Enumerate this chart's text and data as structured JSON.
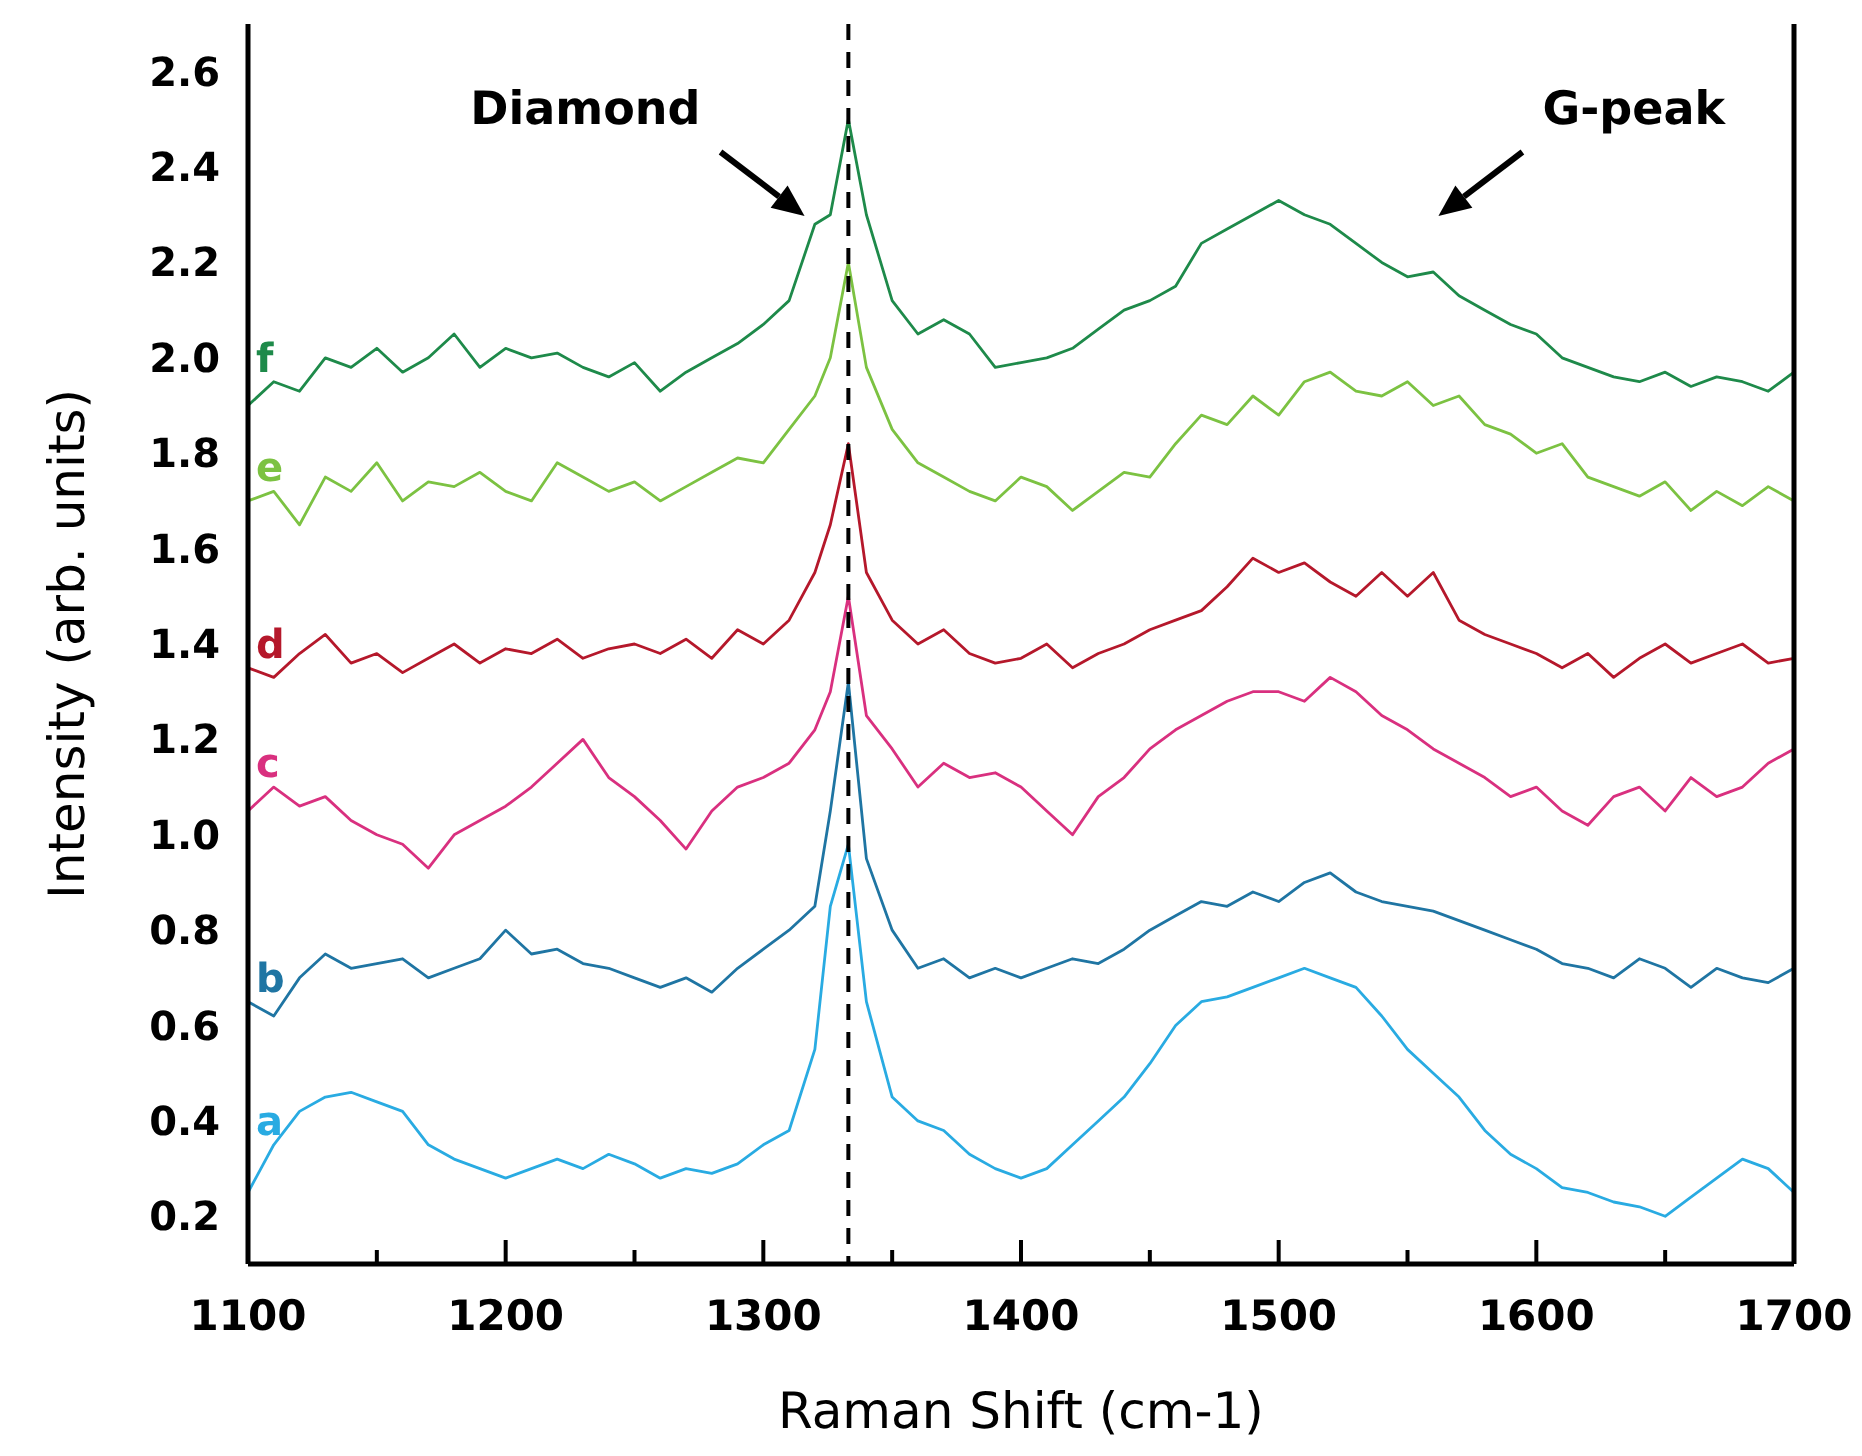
{
  "chart_data": {
    "type": "line",
    "xlabel": "Raman Shift (cm-1)",
    "ylabel": "Intensity (arb. units)",
    "x": [
      1100,
      1110,
      1120,
      1130,
      1140,
      1150,
      1160,
      1170,
      1180,
      1190,
      1200,
      1210,
      1220,
      1230,
      1240,
      1250,
      1260,
      1270,
      1280,
      1290,
      1300,
      1310,
      1320,
      1326,
      1333,
      1340,
      1350,
      1360,
      1370,
      1380,
      1390,
      1400,
      1410,
      1420,
      1430,
      1440,
      1450,
      1460,
      1470,
      1480,
      1490,
      1500,
      1510,
      1520,
      1530,
      1540,
      1550,
      1560,
      1570,
      1580,
      1590,
      1600,
      1610,
      1620,
      1630,
      1640,
      1650,
      1660,
      1670,
      1680,
      1690,
      1700
    ],
    "series": [
      {
        "name": "a",
        "color": "#29abe2",
        "values": [
          0.25,
          0.35,
          0.42,
          0.45,
          0.46,
          0.44,
          0.42,
          0.35,
          0.32,
          0.3,
          0.28,
          0.3,
          0.32,
          0.3,
          0.33,
          0.31,
          0.28,
          0.3,
          0.29,
          0.31,
          0.35,
          0.38,
          0.55,
          0.85,
          0.98,
          0.65,
          0.45,
          0.4,
          0.38,
          0.33,
          0.3,
          0.28,
          0.3,
          0.35,
          0.4,
          0.45,
          0.52,
          0.6,
          0.65,
          0.66,
          0.68,
          0.7,
          0.72,
          0.7,
          0.68,
          0.62,
          0.55,
          0.5,
          0.45,
          0.38,
          0.33,
          0.3,
          0.26,
          0.25,
          0.23,
          0.22,
          0.2,
          0.24,
          0.28,
          0.32,
          0.3,
          0.25
        ]
      },
      {
        "name": "b",
        "color": "#1f75a3",
        "values": [
          0.65,
          0.62,
          0.7,
          0.75,
          0.72,
          0.73,
          0.74,
          0.7,
          0.72,
          0.74,
          0.8,
          0.75,
          0.76,
          0.73,
          0.72,
          0.7,
          0.68,
          0.7,
          0.67,
          0.72,
          0.76,
          0.8,
          0.85,
          1.05,
          1.32,
          0.95,
          0.8,
          0.72,
          0.74,
          0.7,
          0.72,
          0.7,
          0.72,
          0.74,
          0.73,
          0.76,
          0.8,
          0.83,
          0.86,
          0.85,
          0.88,
          0.86,
          0.9,
          0.92,
          0.88,
          0.86,
          0.85,
          0.84,
          0.82,
          0.8,
          0.78,
          0.76,
          0.73,
          0.72,
          0.7,
          0.74,
          0.72,
          0.68,
          0.72,
          0.7,
          0.69,
          0.72
        ]
      },
      {
        "name": "c",
        "color": "#d9307f",
        "values": [
          1.05,
          1.1,
          1.06,
          1.08,
          1.03,
          1.0,
          0.98,
          0.93,
          1.0,
          1.03,
          1.06,
          1.1,
          1.15,
          1.2,
          1.12,
          1.08,
          1.03,
          0.97,
          1.05,
          1.1,
          1.12,
          1.15,
          1.22,
          1.3,
          1.5,
          1.25,
          1.18,
          1.1,
          1.15,
          1.12,
          1.13,
          1.1,
          1.05,
          1.0,
          1.08,
          1.12,
          1.18,
          1.22,
          1.25,
          1.28,
          1.3,
          1.3,
          1.28,
          1.33,
          1.3,
          1.25,
          1.22,
          1.18,
          1.15,
          1.12,
          1.08,
          1.1,
          1.05,
          1.02,
          1.08,
          1.1,
          1.05,
          1.12,
          1.08,
          1.1,
          1.15,
          1.18
        ]
      },
      {
        "name": "d",
        "color": "#b5182b",
        "values": [
          1.35,
          1.33,
          1.38,
          1.42,
          1.36,
          1.38,
          1.34,
          1.37,
          1.4,
          1.36,
          1.39,
          1.38,
          1.41,
          1.37,
          1.39,
          1.4,
          1.38,
          1.41,
          1.37,
          1.43,
          1.4,
          1.45,
          1.55,
          1.65,
          1.82,
          1.55,
          1.45,
          1.4,
          1.43,
          1.38,
          1.36,
          1.37,
          1.4,
          1.35,
          1.38,
          1.4,
          1.43,
          1.45,
          1.47,
          1.52,
          1.58,
          1.55,
          1.57,
          1.53,
          1.5,
          1.55,
          1.5,
          1.55,
          1.45,
          1.42,
          1.4,
          1.38,
          1.35,
          1.38,
          1.33,
          1.37,
          1.4,
          1.36,
          1.38,
          1.4,
          1.36,
          1.37
        ]
      },
      {
        "name": "e",
        "color": "#7cc242",
        "values": [
          1.7,
          1.72,
          1.65,
          1.75,
          1.72,
          1.78,
          1.7,
          1.74,
          1.73,
          1.76,
          1.72,
          1.7,
          1.78,
          1.75,
          1.72,
          1.74,
          1.7,
          1.73,
          1.76,
          1.79,
          1.78,
          1.85,
          1.92,
          2.0,
          2.2,
          1.98,
          1.85,
          1.78,
          1.75,
          1.72,
          1.7,
          1.75,
          1.73,
          1.68,
          1.72,
          1.76,
          1.75,
          1.82,
          1.88,
          1.86,
          1.92,
          1.88,
          1.95,
          1.97,
          1.93,
          1.92,
          1.95,
          1.9,
          1.92,
          1.86,
          1.84,
          1.8,
          1.82,
          1.75,
          1.73,
          1.71,
          1.74,
          1.68,
          1.72,
          1.69,
          1.73,
          1.7
        ]
      },
      {
        "name": "f",
        "color": "#1e8a4a",
        "values": [
          1.9,
          1.95,
          1.93,
          2.0,
          1.98,
          2.02,
          1.97,
          2.0,
          2.05,
          1.98,
          2.02,
          2.0,
          2.01,
          1.98,
          1.96,
          1.99,
          1.93,
          1.97,
          2.0,
          2.03,
          2.07,
          2.12,
          2.28,
          2.3,
          2.5,
          2.3,
          2.12,
          2.05,
          2.08,
          2.05,
          1.98,
          1.99,
          2.0,
          2.02,
          2.06,
          2.1,
          2.12,
          2.15,
          2.24,
          2.27,
          2.3,
          2.33,
          2.3,
          2.28,
          2.24,
          2.2,
          2.17,
          2.18,
          2.13,
          2.1,
          2.07,
          2.05,
          2.0,
          1.98,
          1.96,
          1.95,
          1.97,
          1.94,
          1.96,
          1.95,
          1.93,
          1.97
        ]
      }
    ],
    "xlim": [
      1100,
      1700
    ],
    "xticks": [
      1100,
      {
        "value": 1150,
        "label": null
      },
      1200,
      {
        "value": 1250,
        "label": null
      },
      1300,
      {
        "value": 1350,
        "label": null
      },
      1400,
      {
        "value": 1450,
        "label": null
      },
      1500,
      {
        "value": 1550,
        "label": null
      },
      1600,
      {
        "value": 1650,
        "label": null
      },
      1700
    ],
    "ylim": [
      0.1,
      2.7
    ],
    "yticks": [
      {
        "value": 0.2,
        "label": "0.2"
      },
      {
        "value": 0.4,
        "label": "0.4"
      },
      {
        "value": 0.6,
        "label": "0.6"
      },
      {
        "value": 0.8,
        "label": "0.8"
      },
      {
        "value": 1.0,
        "label": "1.0"
      },
      {
        "value": 1.2,
        "label": "1.2"
      },
      {
        "value": 1.4,
        "label": "1.4"
      },
      {
        "value": 1.6,
        "label": "1.6"
      },
      {
        "value": 1.8,
        "label": "1.8"
      },
      {
        "value": 2.0,
        "label": "2.0"
      },
      {
        "value": 2.2,
        "label": "2.2"
      },
      {
        "value": 2.4,
        "label": "2.4"
      },
      {
        "value": 2.6,
        "label": "2.6"
      }
    ],
    "ref_lines": [
      {
        "axis": "x",
        "value": 1333,
        "color": "#000000",
        "line_style": "dashed"
      }
    ],
    "annotations": [
      "Diamond",
      "G-peak"
    ],
    "grid": false,
    "marker": "none",
    "line_style": "solid"
  }
}
